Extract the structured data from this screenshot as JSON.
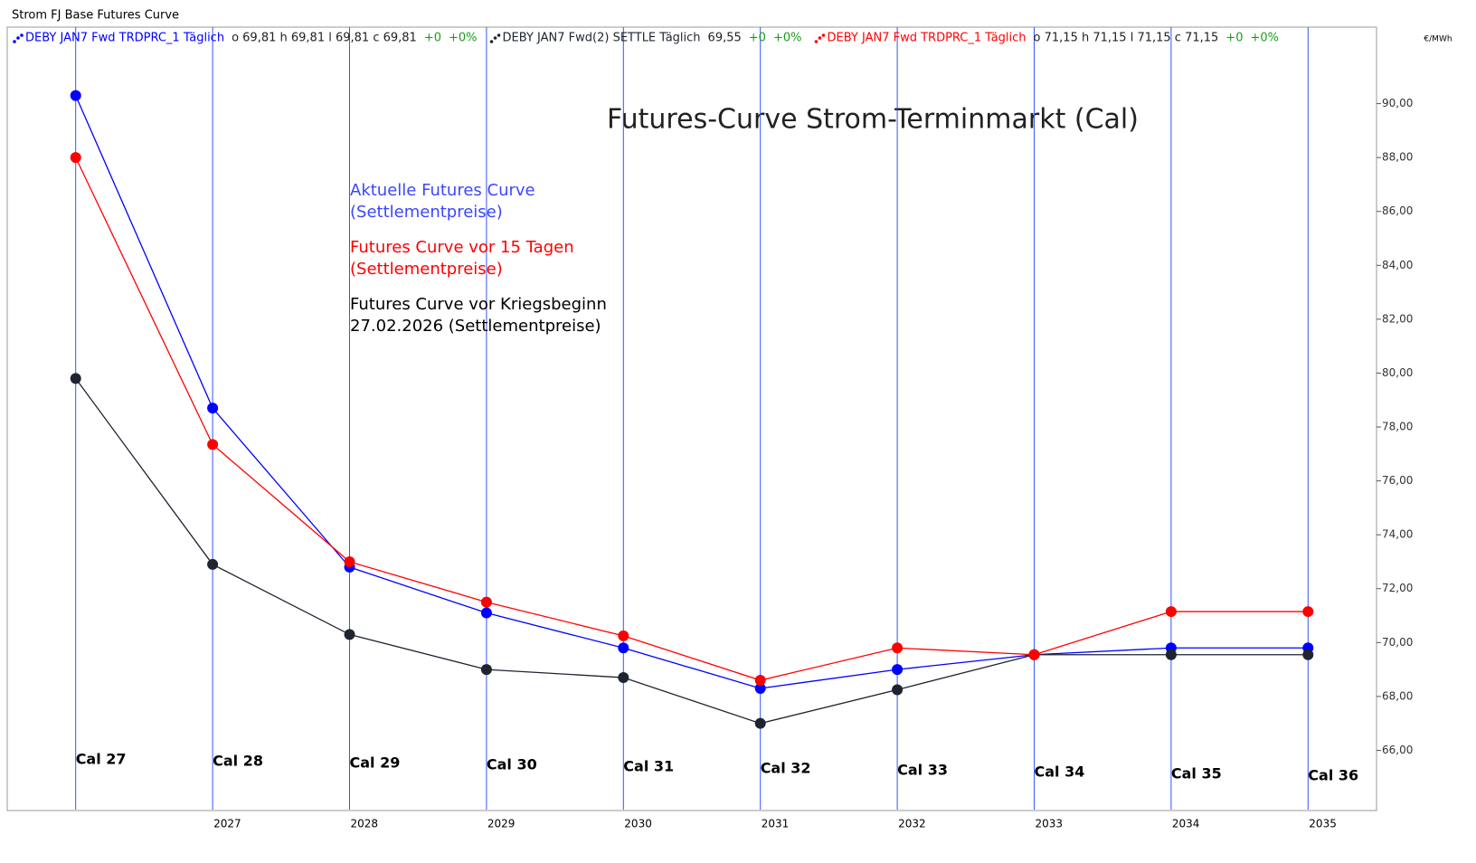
{
  "chart_data": {
    "type": "line",
    "window_title": "Strom FJ Base Futures Curve",
    "title": "Futures-Curve Strom-Terminmarkt (Cal)",
    "y_unit": "€/MWh",
    "categories": [
      null,
      "2027",
      "2028",
      "2029",
      "2030",
      "2031",
      "2032",
      "2033",
      "2034",
      "2035"
    ],
    "point_labels": [
      "Cal 27",
      "Cal 28",
      "Cal 29",
      "Cal 30",
      "Cal 31",
      "Cal 32",
      "Cal 33",
      "Cal 34",
      "Cal 35",
      "Cal 36"
    ],
    "series": [
      {
        "name": "DEBY JAN7 Fwd TRDPRC_1 Täglich",
        "color": "#0000ff",
        "quote": "o 69,81 h 69,81 l 69,81 c 69,81",
        "change": "+0",
        "change_pct": "+0%",
        "values": [
          90.3,
          78.7,
          72.8,
          71.1,
          69.8,
          68.3,
          69.0,
          69.55,
          69.8,
          69.8
        ]
      },
      {
        "name": "DEBY JAN7 Fwd(2) SETTLE Täglich",
        "color": "#1f2430",
        "quote": "69,55",
        "change": "+0",
        "change_pct": "+0%",
        "values": [
          79.8,
          72.9,
          70.3,
          69.0,
          68.7,
          67.0,
          68.25,
          69.55,
          69.55,
          69.55
        ]
      },
      {
        "name": "DEBY JAN7 Fwd TRDPRC_1 Täglich",
        "color": "#ff0000",
        "quote": "o 71,15 h 71,15 l 71,15 c 71,15",
        "change": "+0",
        "change_pct": "+0%",
        "values": [
          88.0,
          77.35,
          73.0,
          71.5,
          70.25,
          68.6,
          69.8,
          69.55,
          71.15,
          71.15
        ]
      }
    ],
    "annotations": [
      {
        "lines": [
          "Aktuelle Futures Curve",
          "(Settlementpreise)"
        ],
        "color": "#3b46ff"
      },
      {
        "lines": [
          "Futures Curve vor 15 Tagen",
          "(Settlementpreise)"
        ],
        "color": "#ff0000"
      },
      {
        "lines": [
          "Futures Curve vor Kriegsbeginn",
          "27.02.2026 (Settlementpreise)"
        ],
        "color": "#000000"
      }
    ],
    "ylim": [
      63.8,
      92
    ],
    "yticks": [
      {
        "value": 66,
        "label": "66,00"
      },
      {
        "value": 68,
        "label": "68,00"
      },
      {
        "value": 70,
        "label": "70,00"
      },
      {
        "value": 72,
        "label": "72,00"
      },
      {
        "value": 74,
        "label": "74,00"
      },
      {
        "value": 76,
        "label": "76,00"
      },
      {
        "value": 78,
        "label": "78,00"
      },
      {
        "value": 80,
        "label": "80,00"
      },
      {
        "value": 82,
        "label": "82,00"
      },
      {
        "value": 84,
        "label": "84,00"
      },
      {
        "value": 86,
        "label": "86,00"
      },
      {
        "value": 88,
        "label": "88,00"
      },
      {
        "value": 90,
        "label": "90,00"
      }
    ],
    "category_lines": true
  }
}
